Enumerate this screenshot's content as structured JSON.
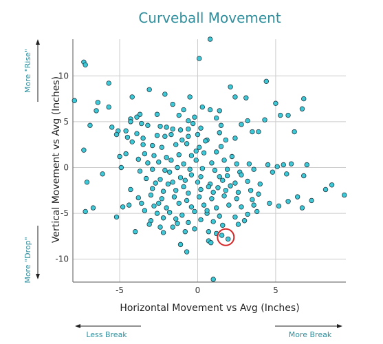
{
  "chart_data": {
    "type": "scatter",
    "title": "Curveball Movement",
    "xlabel": "Horizontal Movement vs Avg (Inches)",
    "ylabel": "Vertical Movement vs Avg (Inches)",
    "xlim": [
      -8,
      9.5
    ],
    "ylim": [
      -12.5,
      14
    ],
    "xticks": [
      -5,
      0,
      5
    ],
    "yticks": [
      -10,
      -5,
      0,
      5,
      10
    ],
    "grid": true,
    "annotations": {
      "top_left": "More \"Rise\"",
      "bottom_left": "More \"Drop\"",
      "bottom_left_arrow": "Less Break",
      "bottom_right_arrow": "More Break"
    },
    "highlight": {
      "x": 1.8,
      "y": -7.6,
      "color": "#d62728"
    },
    "colors": {
      "point_fill": "#3cc8d6",
      "point_stroke": "#1f3b44",
      "accent": "#2f8f9d",
      "grid": "#cccccc"
    },
    "points": [
      [
        0.8,
        14
      ],
      [
        0.1,
        11.9
      ],
      [
        -7.3,
        11.5
      ],
      [
        -7.2,
        11.2
      ],
      [
        -5.7,
        9.2
      ],
      [
        -6.4,
        7.1
      ],
      [
        -4.2,
        7.7
      ],
      [
        -7.9,
        7.3
      ],
      [
        -5.7,
        6.6
      ],
      [
        -6.5,
        6.2
      ],
      [
        -3.1,
        8.5
      ],
      [
        -2.1,
        8
      ],
      [
        -0.5,
        7.7
      ],
      [
        2.1,
        8.8
      ],
      [
        3.1,
        7.6
      ],
      [
        2.4,
        7.7
      ],
      [
        4.4,
        9.4
      ],
      [
        5,
        7
      ],
      [
        6.8,
        7.5
      ],
      [
        6.7,
        6.4
      ],
      [
        -1.6,
        6.9
      ],
      [
        -0.9,
        6.3
      ],
      [
        0.3,
        6.6
      ],
      [
        0.8,
        6.3
      ],
      [
        1.4,
        6.2
      ],
      [
        -2.6,
        5.8
      ],
      [
        -3.7,
        5.8
      ],
      [
        -3.9,
        5.5
      ],
      [
        -4.3,
        5.3
      ],
      [
        -4.3,
        5
      ],
      [
        -1.2,
        5.7
      ],
      [
        -0.6,
        5.1
      ],
      [
        -0.2,
        5.5
      ],
      [
        1.2,
        5.4
      ],
      [
        3.2,
        5.1
      ],
      [
        4.3,
        5.2
      ],
      [
        5.3,
        5.7
      ],
      [
        5.8,
        5.7
      ],
      [
        -6.9,
        4.6
      ],
      [
        -5.5,
        4.4
      ],
      [
        -5.1,
        4
      ],
      [
        -4.6,
        4
      ],
      [
        -5.2,
        3.6
      ],
      [
        -3.6,
        4.8
      ],
      [
        -3.2,
        4.6
      ],
      [
        -2.4,
        4.5
      ],
      [
        -2,
        4.4
      ],
      [
        -1.6,
        4.2
      ],
      [
        -1.1,
        4.1
      ],
      [
        -0.6,
        4.2
      ],
      [
        0.2,
        4.3
      ],
      [
        1.5,
        4.6
      ],
      [
        1.4,
        3.8
      ],
      [
        2.8,
        4.7
      ],
      [
        3.5,
        3.9
      ],
      [
        3.9,
        3.9
      ],
      [
        -3.9,
        3.7
      ],
      [
        -3.5,
        3.2
      ],
      [
        -2.6,
        3.5
      ],
      [
        -2.1,
        3.4
      ],
      [
        -1.7,
        3.6
      ],
      [
        -1,
        3
      ],
      [
        -0.6,
        3.4
      ],
      [
        0,
        3.6
      ],
      [
        0.6,
        3
      ],
      [
        1.8,
        3
      ],
      [
        2.4,
        3.2
      ],
      [
        6.2,
        3.9
      ],
      [
        -4.5,
        3.3
      ],
      [
        -4.2,
        2.8
      ],
      [
        -3.5,
        2.5
      ],
      [
        -2.9,
        2.4
      ],
      [
        -2.3,
        2.2
      ],
      [
        -1.4,
        2.5
      ],
      [
        -0.7,
        2.6
      ],
      [
        0.1,
        2.2
      ],
      [
        1.5,
        2.3
      ],
      [
        -7.3,
        1.9
      ],
      [
        -4.6,
        1.5
      ],
      [
        -3.4,
        1.5
      ],
      [
        -2.8,
        1.3
      ],
      [
        -2,
        1.1
      ],
      [
        -1.2,
        1.4
      ],
      [
        -0.4,
        1.3
      ],
      [
        0.4,
        1.6
      ],
      [
        1.2,
        1.7
      ],
      [
        2.2,
        1.2
      ],
      [
        -5,
        1.2
      ],
      [
        -3.8,
        0.9
      ],
      [
        -3.2,
        0.5
      ],
      [
        -2.5,
        0.6
      ],
      [
        -1.7,
        0.8
      ],
      [
        -0.9,
        0.4
      ],
      [
        -0.1,
        0.8
      ],
      [
        0.9,
        0.5
      ],
      [
        1.7,
        0.8
      ],
      [
        2.5,
        0.4
      ],
      [
        3.3,
        0.4
      ],
      [
        4.5,
        0.3
      ],
      [
        5.1,
        0.1
      ],
      [
        5.5,
        0.3
      ],
      [
        6,
        0.4
      ],
      [
        7,
        0.3
      ],
      [
        -4.9,
        0
      ],
      [
        -3.7,
        -0.4
      ],
      [
        -2.9,
        -0.2
      ],
      [
        -2.1,
        -0.3
      ],
      [
        -1.3,
        0
      ],
      [
        -0.5,
        -0.2
      ],
      [
        0.3,
        -0.1
      ],
      [
        1.1,
        -0.3
      ],
      [
        1.9,
        -0.2
      ],
      [
        2.7,
        -0.5
      ],
      [
        3.6,
        -0.2
      ],
      [
        4.8,
        -0.5
      ],
      [
        5.7,
        -0.7
      ],
      [
        6.8,
        -0.9
      ],
      [
        8.6,
        -1.9
      ],
      [
        -7.1,
        -1.6
      ],
      [
        -3.3,
        -1.2
      ],
      [
        -2.4,
        -1.3
      ],
      [
        -1.6,
        -1.6
      ],
      [
        -0.8,
        -1.4
      ],
      [
        0,
        -1.6
      ],
      [
        0.8,
        -1.8
      ],
      [
        1.6,
        -1.4
      ],
      [
        2.4,
        -1.7
      ],
      [
        3.2,
        -1.5
      ],
      [
        4,
        -1.8
      ],
      [
        -4.3,
        -2.4
      ],
      [
        -2.9,
        -2.3
      ],
      [
        -2.2,
        -2.6
      ],
      [
        -1.4,
        -2.5
      ],
      [
        -0.6,
        -2.8
      ],
      [
        0.2,
        -2.4
      ],
      [
        1,
        -2.7
      ],
      [
        1.8,
        -2.5
      ],
      [
        2.6,
        -2.7
      ],
      [
        3.4,
        -2.5
      ],
      [
        8.2,
        -2.4
      ],
      [
        9.4,
        -3
      ],
      [
        -3.8,
        -3.3
      ],
      [
        -3,
        -3
      ],
      [
        -2.3,
        -3.4
      ],
      [
        -1.5,
        -3.2
      ],
      [
        -0.7,
        -3.6
      ],
      [
        0.1,
        -3.2
      ],
      [
        0.9,
        -3.4
      ],
      [
        1.7,
        -3.1
      ],
      [
        2.5,
        -3.4
      ],
      [
        3.5,
        -3.5
      ],
      [
        5.8,
        -3.7
      ],
      [
        6.4,
        -3.2
      ],
      [
        7.3,
        -3.6
      ],
      [
        -6.7,
        -4.4
      ],
      [
        -4.4,
        -4.1
      ],
      [
        -3.6,
        -3.9
      ],
      [
        -2.8,
        -4.2
      ],
      [
        -2,
        -4.4
      ],
      [
        -1.2,
        -3.9
      ],
      [
        -0.4,
        -4.3
      ],
      [
        0.4,
        -4.1
      ],
      [
        1.2,
        -4.4
      ],
      [
        2,
        -4.1
      ],
      [
        2.8,
        -4.3
      ],
      [
        3.6,
        -4.1
      ],
      [
        4.6,
        -3.9
      ],
      [
        5.2,
        -4.2
      ],
      [
        6.7,
        -4.4
      ],
      [
        -7.2,
        -4.8
      ],
      [
        -3.4,
        -4.7
      ],
      [
        -2.6,
        -5
      ],
      [
        -1.8,
        -4.9
      ],
      [
        -1,
        -5.2
      ],
      [
        -0.2,
        -4.8
      ],
      [
        0.6,
        -5
      ],
      [
        1.4,
        -5.3
      ],
      [
        2.4,
        -5.4
      ],
      [
        3.2,
        -5.1
      ],
      [
        3.8,
        -4.8
      ],
      [
        -5.2,
        -5.4
      ],
      [
        -3,
        -5.8
      ],
      [
        -2.2,
        -5.5
      ],
      [
        -1.4,
        -5.6
      ],
      [
        -0.6,
        -6
      ],
      [
        0.2,
        -5.7
      ],
      [
        1,
        -5.9
      ],
      [
        1.6,
        -6.3
      ],
      [
        2.6,
        -6.2
      ],
      [
        3,
        -5.8
      ],
      [
        -3.1,
        -6.2
      ],
      [
        -2.4,
        -6.5
      ],
      [
        -1.6,
        -6.5
      ],
      [
        -0.8,
        -7
      ],
      [
        0.7,
        -7
      ],
      [
        1.2,
        -7.2
      ],
      [
        -4,
        -7
      ],
      [
        -2.2,
        -7.1
      ],
      [
        1.55,
        -7.4
      ],
      [
        1.95,
        -7.8
      ],
      [
        -1.1,
        -8.4
      ],
      [
        0.7,
        -8
      ],
      [
        0.85,
        -8.2
      ],
      [
        -0.7,
        -9.2
      ],
      [
        1,
        -12.2
      ],
      [
        0.2,
        -1
      ],
      [
        -0.4,
        -0.8
      ],
      [
        1.4,
        -1
      ],
      [
        -1.9,
        -1.8
      ],
      [
        -0.9,
        -2.1
      ],
      [
        2.1,
        -2
      ],
      [
        -2.7,
        -1.7
      ],
      [
        0.6,
        -4.7
      ],
      [
        -1.3,
        -6.1
      ],
      [
        -0.2,
        -6.7
      ],
      [
        0.5,
        2.9
      ],
      [
        -0.3,
        4.8
      ],
      [
        1.9,
        -0.9
      ],
      [
        -1.8,
        -0.5
      ],
      [
        3.9,
        -2.9
      ],
      [
        -4.8,
        -4.3
      ],
      [
        -6.1,
        -0.7
      ],
      [
        -0.1,
        1.8
      ],
      [
        0.7,
        -2.1
      ],
      [
        1.3,
        -2.2
      ],
      [
        -1.1,
        -1.1
      ],
      [
        2.8,
        -0.8
      ],
      [
        -2.5,
        -3.9
      ]
    ]
  }
}
